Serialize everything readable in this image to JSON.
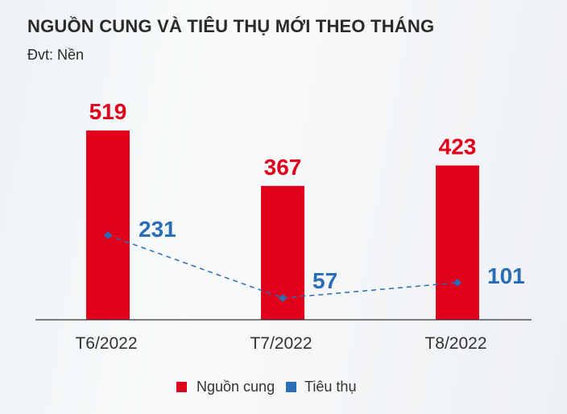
{
  "header": {
    "title": "NGUỒN CUNG VÀ TIÊU THỤ MỚI THEO THÁNG",
    "subtitle": "Đvt: Nền"
  },
  "colors": {
    "supply": "#e0001b",
    "consumption": "#2a6db5",
    "axis": "#333333"
  },
  "legend": [
    {
      "label": "Nguồn cung",
      "color": "#e0001b"
    },
    {
      "label": "Tiêu thụ",
      "color": "#2a6db5"
    }
  ],
  "chart_data": {
    "type": "bar",
    "title": "NGUỒN CUNG VÀ TIÊU THỤ MỚI THEO THÁNG",
    "subtitle": "Đvt: Nền",
    "categories": [
      "T6/2022",
      "T7/2022",
      "T8/2022"
    ],
    "series": [
      {
        "name": "Nguồn cung",
        "type": "bar",
        "values": [
          519,
          367,
          423
        ],
        "color": "#e0001b"
      },
      {
        "name": "Tiêu thụ",
        "type": "line",
        "style": "dashed",
        "marker": "diamond",
        "values": [
          231,
          57,
          101
        ],
        "color": "#2a6db5"
      }
    ],
    "xlabel": "",
    "ylabel": "",
    "grid": false,
    "legend_position": "bottom"
  }
}
